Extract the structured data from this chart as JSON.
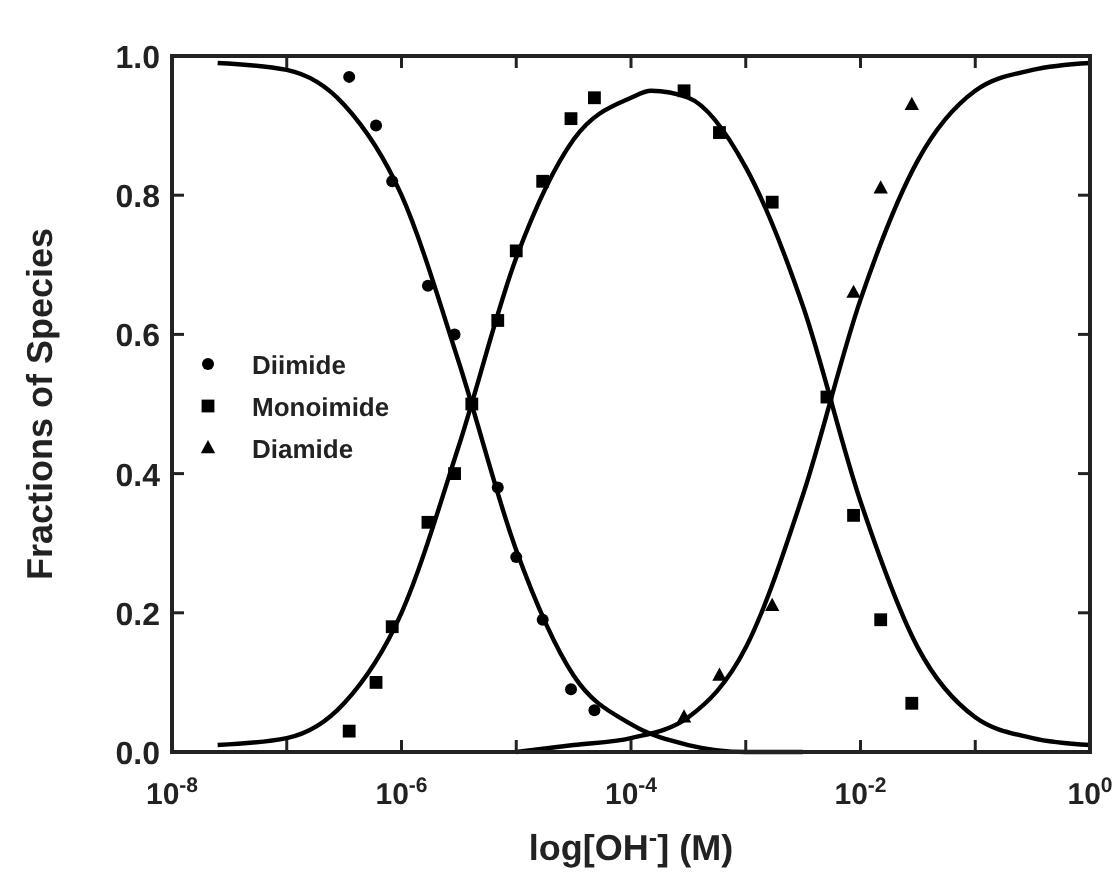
{
  "chart_data": {
    "type": "scatter",
    "xlabel": "log[OH$^{-}$] (M)",
    "ylabel": "Fractions of Species",
    "log": "x",
    "xlim": [
      1e-08,
      1
    ],
    "ylim": [
      0,
      1
    ],
    "xticks": [
      {
        "value": 1e-08,
        "label": "10$^{-8}$"
      },
      {
        "value": 1e-07,
        "label": null
      },
      {
        "value": 1e-06,
        "label": "10$^{-6}$"
      },
      {
        "value": 1e-05,
        "label": null
      },
      {
        "value": 0.0001,
        "label": "10$^{-4}$"
      },
      {
        "value": 0.001,
        "label": null
      },
      {
        "value": 0.01,
        "label": "10$^{-2}$"
      },
      {
        "value": 0.1,
        "label": null
      },
      {
        "value": 1,
        "label": "10$^{0}$"
      }
    ],
    "yticks": [
      {
        "value": 0,
        "label": "0.0"
      },
      {
        "value": 0.2,
        "label": "0.2"
      },
      {
        "value": 0.4,
        "label": "0.4"
      },
      {
        "value": 0.6,
        "label": "0.6"
      },
      {
        "value": 0.8,
        "label": "0.8"
      },
      {
        "value": 1,
        "label": "1.0"
      }
    ],
    "grid": false,
    "legend": "left",
    "series": [
      {
        "name": "Diimide",
        "marker": "circle",
        "color": "#000000",
        "x": [
          3.5e-07,
          6e-07,
          8.3e-07,
          1.7e-06,
          2.9e-06,
          4.1e-06,
          6.9e-06,
          1e-05,
          1.7e-05,
          3e-05,
          4.8e-05
        ],
        "values": [
          0.97,
          0.9,
          0.82,
          0.67,
          0.6,
          null,
          0.38,
          0.28,
          0.19,
          0.09,
          0.06
        ]
      },
      {
        "name": "Monoimide",
        "marker": "square",
        "color": "#000000",
        "x": [
          3.5e-07,
          6e-07,
          8.3e-07,
          1.7e-06,
          2.9e-06,
          4.1e-06,
          6.9e-06,
          1e-05,
          1.7e-05,
          3e-05,
          4.8e-05,
          0.00029,
          0.00059,
          0.0017,
          0.0051,
          0.0087,
          0.015,
          0.028
        ],
        "values": [
          0.03,
          0.1,
          0.18,
          0.33,
          0.4,
          0.5,
          0.62,
          0.72,
          0.82,
          0.91,
          0.94,
          0.95,
          0.89,
          0.79,
          0.51,
          0.34,
          0.19,
          0.07
        ]
      },
      {
        "name": "Diamide",
        "marker": "triangle",
        "color": "#000000",
        "x": [
          0.00029,
          0.00059,
          0.0017,
          0.0087,
          0.015,
          0.028
        ],
        "values": [
          0.05,
          0.11,
          0.21,
          0.66,
          0.81,
          0.93
        ]
      },
      {
        "type": "line",
        "marker": "none",
        "line_style": "solid",
        "color": "#000000",
        "x": [
          2.5e-08,
          1e-07,
          3.16e-07,
          1e-06,
          3.16e-06,
          1e-05,
          3.16e-05,
          0.0001,
          0.000316,
          0.001,
          0.00316
        ],
        "values": [
          0.99,
          0.98,
          0.93,
          0.8,
          0.56,
          0.29,
          0.11,
          0.04,
          0.01,
          0.0,
          0.0
        ]
      },
      {
        "type": "line",
        "marker": "none",
        "line_style": "solid",
        "color": "#000000",
        "x": [
          2.5e-08,
          1e-07,
          3.16e-07,
          1e-06,
          3.16e-06,
          1e-05,
          3.16e-05,
          0.0001,
          0.00015,
          0.000316,
          0.001,
          0.00316,
          0.01,
          0.0316,
          0.1,
          0.316,
          1
        ],
        "values": [
          0.01,
          0.02,
          0.07,
          0.2,
          0.44,
          0.71,
          0.88,
          0.94,
          0.95,
          0.94,
          0.84,
          0.64,
          0.36,
          0.15,
          0.05,
          0.02,
          0.01
        ]
      },
      {
        "type": "line",
        "marker": "none",
        "line_style": "solid",
        "color": "#000000",
        "x": [
          1e-05,
          3.16e-05,
          0.0001,
          0.000316,
          0.001,
          0.00316,
          0.01,
          0.0316,
          0.1,
          0.316,
          1
        ],
        "values": [
          0.0,
          0.01,
          0.02,
          0.05,
          0.15,
          0.37,
          0.65,
          0.85,
          0.95,
          0.98,
          0.99
        ]
      }
    ]
  }
}
